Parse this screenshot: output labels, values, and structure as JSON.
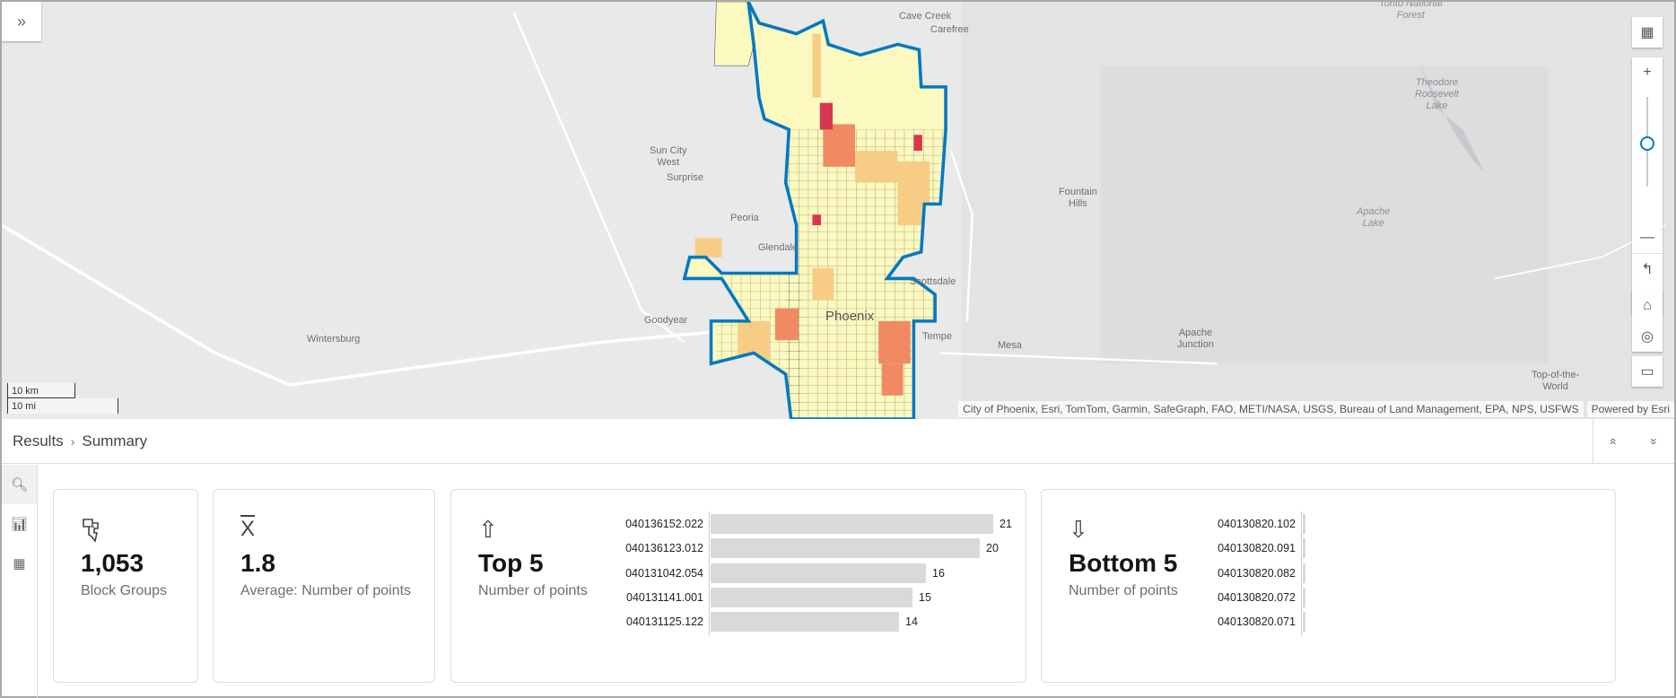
{
  "map": {
    "expand_icon": "double-chevron-right-icon",
    "labels": [
      {
        "id": "cave-creek",
        "text": "Cave Creek"
      },
      {
        "id": "carefree",
        "text": "Carefree"
      },
      {
        "id": "tonto",
        "text": "Tonto National\nForest"
      },
      {
        "id": "sun-city-west",
        "text": "Sun City\nWest"
      },
      {
        "id": "surprise",
        "text": "Surprise"
      },
      {
        "id": "peoria",
        "text": "Peoria"
      },
      {
        "id": "glendale",
        "text": "Glendale"
      },
      {
        "id": "scottsdale",
        "text": "Scottsdale"
      },
      {
        "id": "fountain-hills",
        "text": "Fountain\nHills"
      },
      {
        "id": "roosevelt",
        "text": "Theodore\nRoosevelt\nLake"
      },
      {
        "id": "apache-lake",
        "text": "Apache\nLake"
      },
      {
        "id": "goodyear",
        "text": "Goodyear"
      },
      {
        "id": "phoenix",
        "text": "Phoenix"
      },
      {
        "id": "tempe",
        "text": "Tempe"
      },
      {
        "id": "mesa",
        "text": "Mesa"
      },
      {
        "id": "apache-junction",
        "text": "Apache\nJunction"
      },
      {
        "id": "wintersburg",
        "text": "Wintersburg"
      },
      {
        "id": "top-of-the-world",
        "text": "Top-of-the-\nWorld"
      }
    ],
    "scale_km": "10 km",
    "scale_mi": "10 mi",
    "attribution": "City of Phoenix, Esri, TomTom, Garmin, SafeGraph, FAO, METI/NASA, USGS, Bureau of Land Management, EPA, NPS, USFWS",
    "powered_by": "Powered by Esri",
    "zoom_level_fraction": 0.55,
    "colors": {
      "outline": "#0079c1",
      "low": "#fcf9c0",
      "mid": "#f7cd85",
      "high": "#f08a62",
      "top": "#d7384f"
    }
  },
  "panel": {
    "breadcrumb": [
      "Results",
      "Summary"
    ],
    "breadcrumb_sep": "›",
    "expand_up": "«",
    "collapse_down": "»"
  },
  "cards": {
    "count": {
      "icon": "block-groups-icon",
      "value": "1,053",
      "label": "Block Groups"
    },
    "average": {
      "icon": "mean-x-bar-icon",
      "value": "1.8",
      "label": "Average: Number of points"
    },
    "top": {
      "icon": "arrow-up-icon",
      "value": "Top 5",
      "label": "Number of points"
    },
    "bottom": {
      "icon": "arrow-down-icon",
      "value": "Bottom 5",
      "label": "Number of points"
    }
  },
  "chart_data": [
    {
      "type": "bar",
      "title": "Top 5",
      "xlabel": "Number of points",
      "categories": [
        "040136152.022",
        "040136123.012",
        "040131042.054",
        "040131141.001",
        "040131125.122"
      ],
      "values": [
        21,
        20,
        16,
        15,
        14
      ]
    },
    {
      "type": "bar",
      "title": "Bottom 5",
      "xlabel": "Number of points",
      "categories": [
        "040130820.102",
        "040130820.091",
        "040130820.082",
        "040130820.072",
        "040130820.071"
      ],
      "values": [
        0,
        0,
        0,
        0,
        0
      ]
    }
  ]
}
